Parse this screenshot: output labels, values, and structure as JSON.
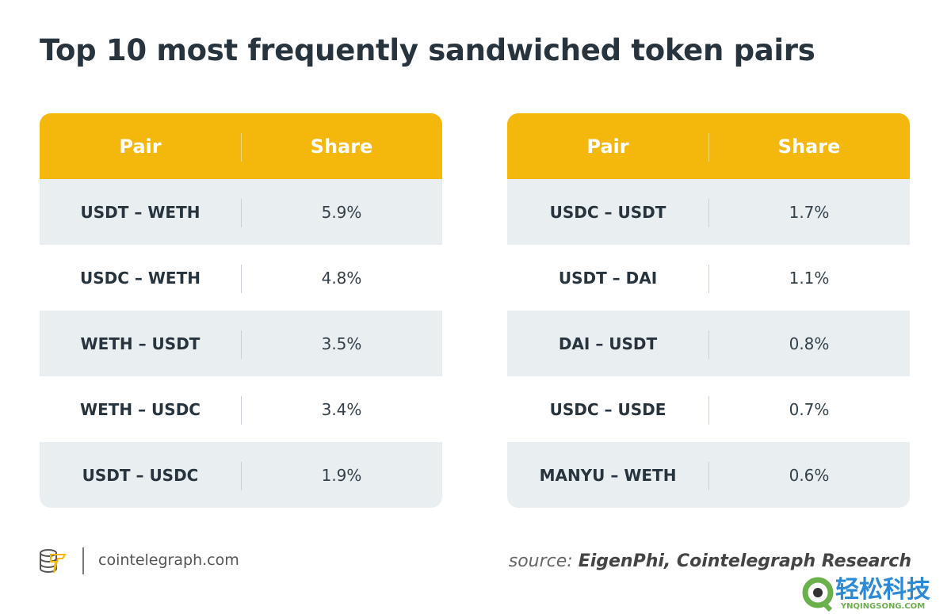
{
  "title": "Top 10 most frequently sandwiched token pairs",
  "chart_data": {
    "type": "table",
    "title": "Top 10 most frequently sandwiched token pairs",
    "columns": [
      "Pair",
      "Share"
    ],
    "left": [
      {
        "pair": "USDT – WETH",
        "share": "5.9%"
      },
      {
        "pair": "USDC – WETH",
        "share": "4.8%"
      },
      {
        "pair": "WETH – USDT",
        "share": "3.5%"
      },
      {
        "pair": "WETH – USDC",
        "share": "3.4%"
      },
      {
        "pair": "USDT – USDC",
        "share": "1.9%"
      }
    ],
    "right": [
      {
        "pair": "USDC – USDT",
        "share": "1.7%"
      },
      {
        "pair": "USDT – DAI",
        "share": "1.1%"
      },
      {
        "pair": "DAI – USDT",
        "share": "0.8%"
      },
      {
        "pair": "USDC – USDE",
        "share": "0.7%"
      },
      {
        "pair": "MANYU – WETH",
        "share": "0.6%"
      }
    ],
    "colors": {
      "header": "#f4b70b",
      "stripe": "#e9eff1"
    }
  },
  "footer": {
    "site": "cointelegraph.com",
    "source_prefix": "source:",
    "source": "EigenPhi, Cointelegraph Research"
  },
  "watermark": {
    "text": "轻松科技",
    "sub": "YNQINGSONG.COM"
  }
}
